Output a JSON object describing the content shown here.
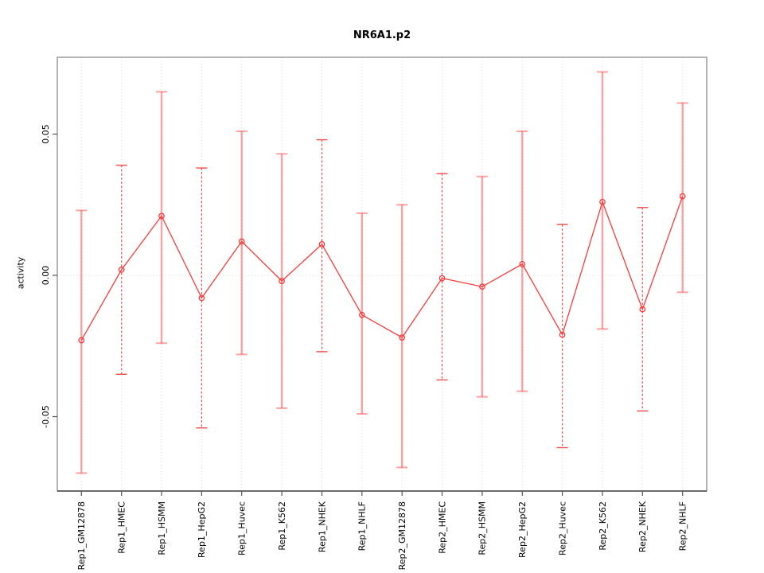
{
  "title": "NR6A1.p2",
  "y_axis_label": "activity",
  "chart_data": {
    "type": "line",
    "title": "NR6A1.p2",
    "ylabel": "activity",
    "xlabel": "",
    "legend": "none",
    "marker": "open-circle",
    "grid": {
      "vertical": "dotted line per category",
      "horizontal": "dotted line at zero"
    },
    "categories": [
      "Rep1_GM12878",
      "Rep1_HMEC",
      "Rep1_HSMM",
      "Rep1_HepG2",
      "Rep1_Huvec",
      "Rep1_K562",
      "Rep1_NHEK",
      "Rep1_NHLF",
      "Rep2_GM12878",
      "Rep2_HMEC",
      "Rep2_HSMM",
      "Rep2_HepG2",
      "Rep2_Huvec",
      "Rep2_K562",
      "Rep2_NHEK",
      "Rep2_NHLF"
    ],
    "series": [
      {
        "name": "activity",
        "values": [
          -0.023,
          0.002,
          0.021,
          -0.008,
          0.012,
          -0.002,
          0.011,
          -0.014,
          -0.022,
          -0.001,
          -0.004,
          0.004,
          -0.021,
          0.026,
          -0.012,
          0.028
        ]
      }
    ],
    "error_high": [
      0.023,
      0.039,
      0.065,
      0.038,
      0.051,
      0.043,
      0.048,
      0.022,
      0.025,
      0.036,
      0.035,
      0.051,
      0.018,
      0.072,
      0.024,
      0.061
    ],
    "error_low": [
      -0.07,
      -0.035,
      -0.024,
      -0.054,
      -0.028,
      -0.047,
      -0.027,
      -0.049,
      -0.068,
      -0.037,
      -0.043,
      -0.041,
      -0.061,
      -0.019,
      -0.048,
      -0.006
    ],
    "error_bar_styles": [
      "solid",
      "dashed",
      "solid",
      "dashed",
      "solid",
      "solid",
      "dashed",
      "solid",
      "solid",
      "dashed",
      "solid",
      "solid",
      "dashed",
      "solid",
      "dashed",
      "solid"
    ],
    "yticks": {
      "values": [
        0.05,
        0,
        -0.05
      ],
      "labels": [
        "0.05",
        "0.00",
        "-0.05"
      ]
    },
    "ylim": [
      -0.077,
      0.077
    ]
  },
  "colors": {
    "series_red": "#fa3c3c",
    "errorbar_solid": "rgba(255,85,85,0.55)",
    "errorbar_dashed": "#ef4444",
    "grid_gray": "#d9d9d9",
    "frame_gray": "#8c8c8c"
  }
}
